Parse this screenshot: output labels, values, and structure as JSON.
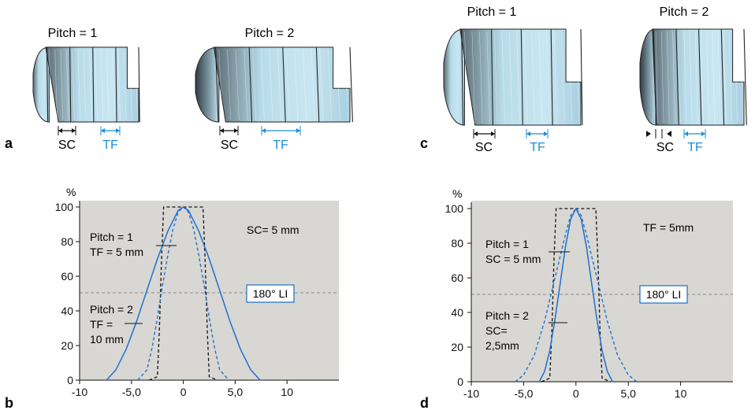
{
  "panels": {
    "a": {
      "letter": "a",
      "helix_left": {
        "title": "Pitch = 1",
        "pitch": 1
      },
      "helix_right": {
        "title": "Pitch = 2",
        "pitch": 2
      },
      "sc_label": "SC",
      "tf_label": "TF"
    },
    "c": {
      "letter": "c",
      "helix_left": {
        "title": "Pitch = 1",
        "pitch": 1
      },
      "helix_right": {
        "title": "Pitch = 2",
        "pitch": 2
      },
      "sc_label": "SC",
      "tf_label": "TF"
    }
  },
  "chart_data": [
    {
      "panel": "b",
      "type": "line",
      "letter": "b",
      "y_unit": "%",
      "xlim": [
        -10,
        15
      ],
      "ylim": [
        0,
        100
      ],
      "x_ticks": [
        -10,
        -5,
        0,
        5,
        10
      ],
      "x_tick_labels": [
        "-10",
        "-5,0",
        "0",
        "5,0",
        "10"
      ],
      "y_ticks": [
        0,
        20,
        40,
        60,
        80,
        100
      ],
      "y_tick_labels": [
        "0",
        "20",
        "40",
        "60",
        "80",
        "100"
      ],
      "reference_line": {
        "y": 50,
        "label": "180° LI"
      },
      "annotations": {
        "top_right": "SC= 5 mm",
        "series1_lines": [
          "Pitch = 1",
          "TF = 5 mm"
        ],
        "series2_lines": [
          "Pitch = 2",
          "TF =",
          "10 mm"
        ]
      },
      "series": [
        {
          "style": "dashed-black",
          "x": [
            -3.3,
            -2.5,
            -2.3,
            -2.1,
            -1.9,
            1.9,
            2.1,
            2.3,
            2.5,
            3.3
          ],
          "y": [
            0,
            2,
            30,
            70,
            100,
            100,
            70,
            30,
            2,
            0
          ]
        },
        {
          "style": "dashed-blue",
          "x": [
            -4.4,
            -3.5,
            -3.0,
            -2.5,
            -2.0,
            -1.5,
            -1.0,
            -0.5,
            0,
            0.5,
            1.0,
            1.5,
            2.0,
            2.5,
            3.0,
            3.5,
            4.4
          ],
          "y": [
            0,
            6,
            19,
            36,
            55,
            72,
            87,
            97,
            100,
            97,
            87,
            72,
            55,
            36,
            19,
            6,
            0
          ]
        },
        {
          "style": "solid-blue",
          "x": [
            -7.4,
            -6.5,
            -5.5,
            -4.5,
            -3.5,
            -2.5,
            -1.5,
            -0.5,
            0,
            0.5,
            1.5,
            2.5,
            3.5,
            4.5,
            5.5,
            6.5,
            7.4
          ],
          "y": [
            0,
            6,
            18,
            34,
            52,
            70,
            86,
            98,
            100,
            98,
            86,
            70,
            52,
            34,
            18,
            6,
            0
          ]
        }
      ]
    },
    {
      "panel": "d",
      "type": "line",
      "letter": "d",
      "y_unit": "%",
      "xlim": [
        -10,
        15
      ],
      "ylim": [
        0,
        100
      ],
      "x_ticks": [
        -10,
        -5,
        0,
        5,
        10
      ],
      "x_tick_labels": [
        "-10",
        "-5,0",
        "0",
        "5,0",
        "10"
      ],
      "y_ticks": [
        0,
        20,
        40,
        60,
        80,
        100
      ],
      "y_tick_labels": [
        "0",
        "20",
        "40",
        "60",
        "80",
        "100"
      ],
      "reference_line": {
        "y": 50,
        "label": "180° LI"
      },
      "annotations": {
        "top_right": "TF = 5mm",
        "series1_lines": [
          "Pitch = 1",
          "SC = 5 mm"
        ],
        "series2_lines": [
          "Pitch = 2",
          "SC=",
          "2,5mm"
        ]
      },
      "series": [
        {
          "style": "dashed-black",
          "x": [
            -3.3,
            -2.5,
            -2.3,
            -2.1,
            -1.9,
            1.9,
            2.1,
            2.3,
            2.5,
            3.3
          ],
          "y": [
            0,
            2,
            30,
            70,
            100,
            100,
            70,
            30,
            2,
            0
          ]
        },
        {
          "style": "dashed-blue",
          "x": [
            -5.8,
            -5.0,
            -4.0,
            -3.0,
            -2.0,
            -1.0,
            -0.5,
            0,
            0.5,
            1.0,
            2.0,
            3.0,
            4.0,
            5.0,
            5.8
          ],
          "y": [
            0,
            4,
            15,
            35,
            60,
            85,
            96,
            100,
            96,
            85,
            60,
            35,
            15,
            4,
            0
          ]
        },
        {
          "style": "solid-blue",
          "x": [
            -3.5,
            -3.0,
            -2.5,
            -2.0,
            -1.5,
            -1.0,
            -0.5,
            0,
            0.5,
            1.0,
            1.5,
            2.0,
            2.5,
            3.0,
            3.5
          ],
          "y": [
            0,
            6,
            18,
            36,
            57,
            78,
            94,
            100,
            94,
            78,
            57,
            36,
            18,
            6,
            0
          ]
        }
      ]
    }
  ]
}
